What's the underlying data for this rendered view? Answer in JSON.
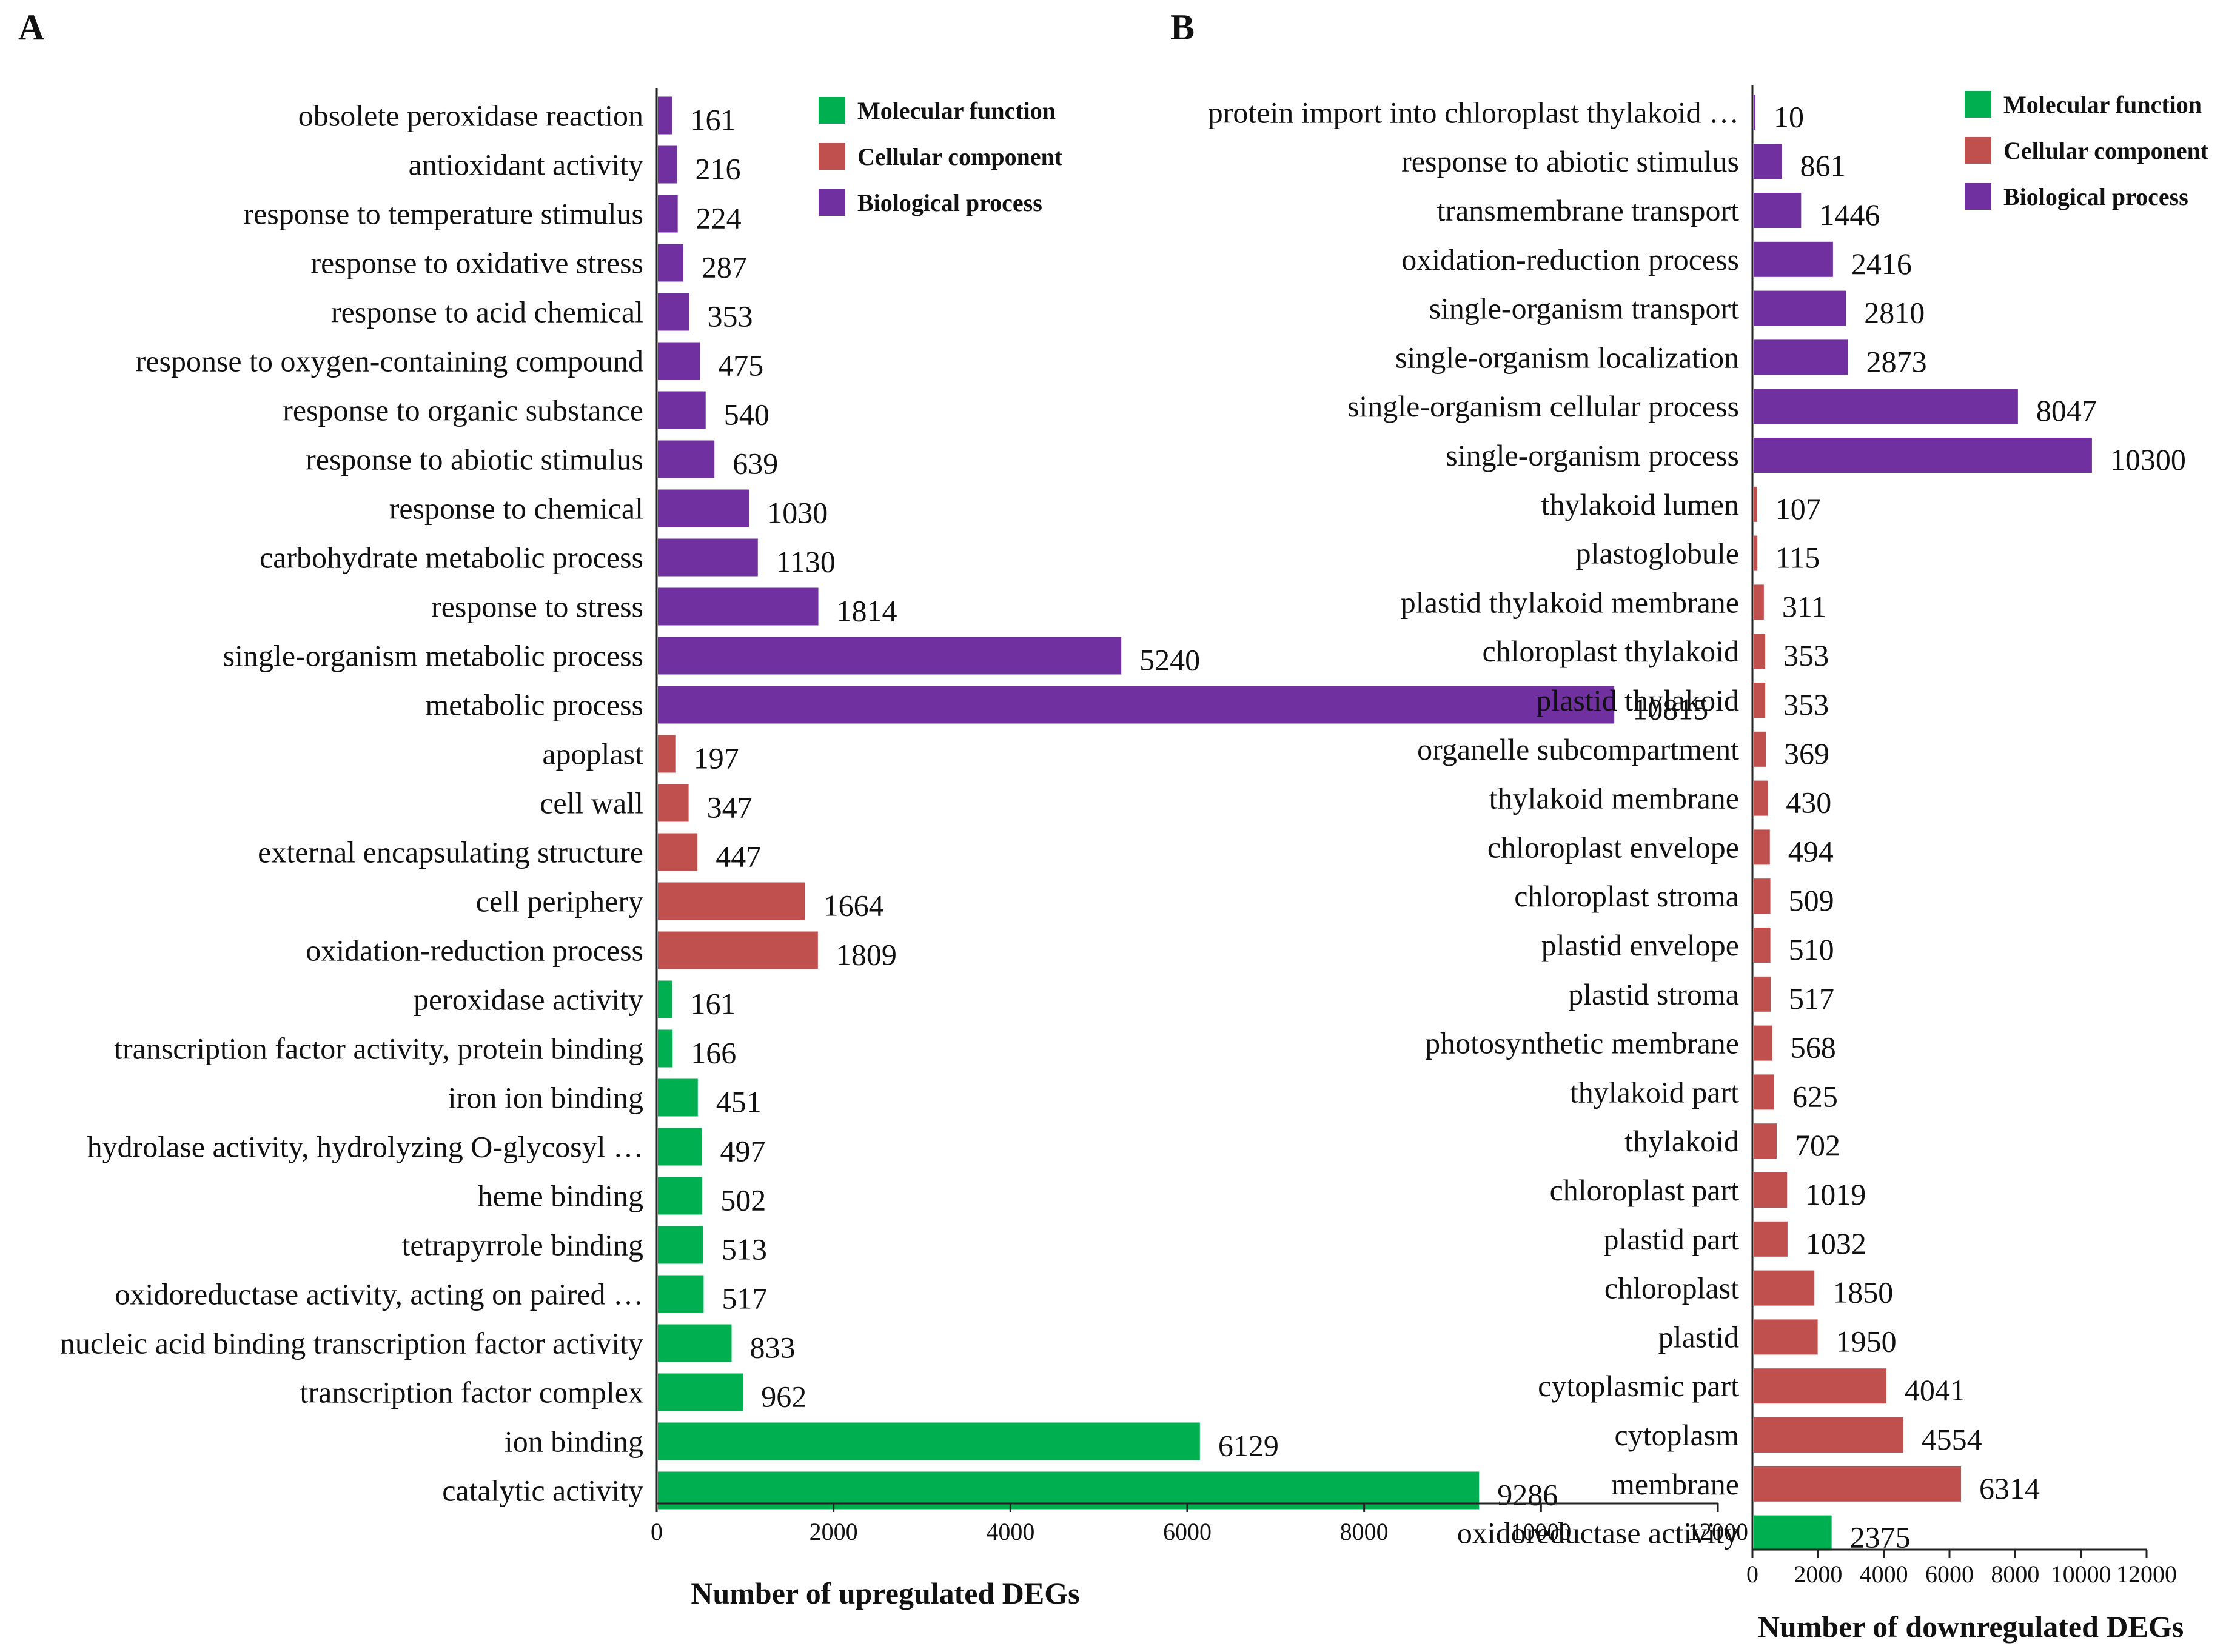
{
  "colors": {
    "Molecular function": "#00b050",
    "Cellular component": "#c0504d",
    "Biological process": "#7030a0"
  },
  "chart_data": [
    {
      "type": "bar",
      "orientation": "horizontal",
      "panel_label": "A",
      "xlabel": "Number of upregulated DEGs",
      "xlim": [
        0,
        12000
      ],
      "xticks": [
        "0",
        "2000",
        "4000",
        "6000",
        "8000",
        "10000",
        "12000"
      ],
      "legend": [
        "Molecular function",
        "Cellular component",
        "Biological process"
      ],
      "legend_position": "top-right",
      "categories": [
        "obsolete peroxidase reaction",
        "antioxidant activity",
        "response to temperature stimulus",
        "response to oxidative stress",
        "response to acid chemical",
        "response to oxygen-containing compound",
        "response to organic substance",
        "response to abiotic stimulus",
        "response to chemical",
        "carbohydrate metabolic process",
        "response to stress",
        "single-organism metabolic process",
        "metabolic process",
        "apoplast",
        "cell wall",
        "external encapsulating structure",
        "cell periphery",
        "oxidation-reduction process",
        "peroxidase activity",
        "transcription factor activity, protein binding",
        "iron ion binding",
        "hydrolase activity, hydrolyzing O-glycosyl …",
        "heme binding",
        "tetrapyrrole binding",
        "oxidoreductase activity, acting on paired …",
        "nucleic acid binding transcription factor activity",
        "transcription factor complex",
        "ion binding",
        "catalytic activity"
      ],
      "values": [
        161,
        216,
        224,
        287,
        353,
        475,
        540,
        639,
        1030,
        1130,
        1814,
        5240,
        10815,
        197,
        347,
        447,
        1664,
        1809,
        161,
        166,
        451,
        497,
        502,
        513,
        517,
        833,
        962,
        6129,
        9286
      ],
      "groups": [
        "Biological process",
        "Biological process",
        "Biological process",
        "Biological process",
        "Biological process",
        "Biological process",
        "Biological process",
        "Biological process",
        "Biological process",
        "Biological process",
        "Biological process",
        "Biological process",
        "Biological process",
        "Cellular component",
        "Cellular component",
        "Cellular component",
        "Cellular component",
        "Cellular component",
        "Molecular function",
        "Molecular function",
        "Molecular function",
        "Molecular function",
        "Molecular function",
        "Molecular function",
        "Molecular function",
        "Molecular function",
        "Molecular function",
        "Molecular function",
        "Molecular function"
      ]
    },
    {
      "type": "bar",
      "orientation": "horizontal",
      "panel_label": "B",
      "xlabel": "Number of downregulated DEGs",
      "xlim": [
        0,
        12000
      ],
      "xticks": [
        "0",
        "2000",
        "4000",
        "6000",
        "8000",
        "10000",
        "12000"
      ],
      "legend": [
        "Molecular function",
        "Cellular component",
        "Biological process"
      ],
      "legend_position": "top-right",
      "categories": [
        "protein import into chloroplast thylakoid …",
        "response to abiotic stimulus",
        "transmembrane transport",
        "oxidation-reduction process",
        "single-organism transport",
        "single-organism localization",
        "single-organism cellular process",
        "single-organism process",
        "thylakoid lumen",
        "plastoglobule",
        "plastid thylakoid membrane",
        "chloroplast thylakoid",
        "plastid thylakoid",
        "organelle subcompartment",
        "thylakoid membrane",
        "chloroplast envelope",
        "chloroplast stroma",
        "plastid envelope",
        "plastid stroma",
        "photosynthetic membrane",
        "thylakoid part",
        "thylakoid",
        "chloroplast part",
        "plastid part",
        "chloroplast",
        "plastid",
        "cytoplasmic part",
        "cytoplasm",
        "membrane",
        "oxidoreductase activity"
      ],
      "values": [
        10,
        861,
        1446,
        2416,
        2810,
        2873,
        8047,
        10300,
        107,
        115,
        311,
        353,
        353,
        369,
        430,
        494,
        509,
        510,
        517,
        568,
        625,
        702,
        1019,
        1032,
        1850,
        1950,
        4041,
        4554,
        6314,
        2375
      ],
      "groups": [
        "Biological process",
        "Biological process",
        "Biological process",
        "Biological process",
        "Biological process",
        "Biological process",
        "Biological process",
        "Biological process",
        "Cellular component",
        "Cellular component",
        "Cellular component",
        "Cellular component",
        "Cellular component",
        "Cellular component",
        "Cellular component",
        "Cellular component",
        "Cellular component",
        "Cellular component",
        "Cellular component",
        "Cellular component",
        "Cellular component",
        "Cellular component",
        "Cellular component",
        "Cellular component",
        "Cellular component",
        "Cellular component",
        "Cellular component",
        "Cellular component",
        "Cellular component",
        "Molecular function"
      ]
    }
  ]
}
